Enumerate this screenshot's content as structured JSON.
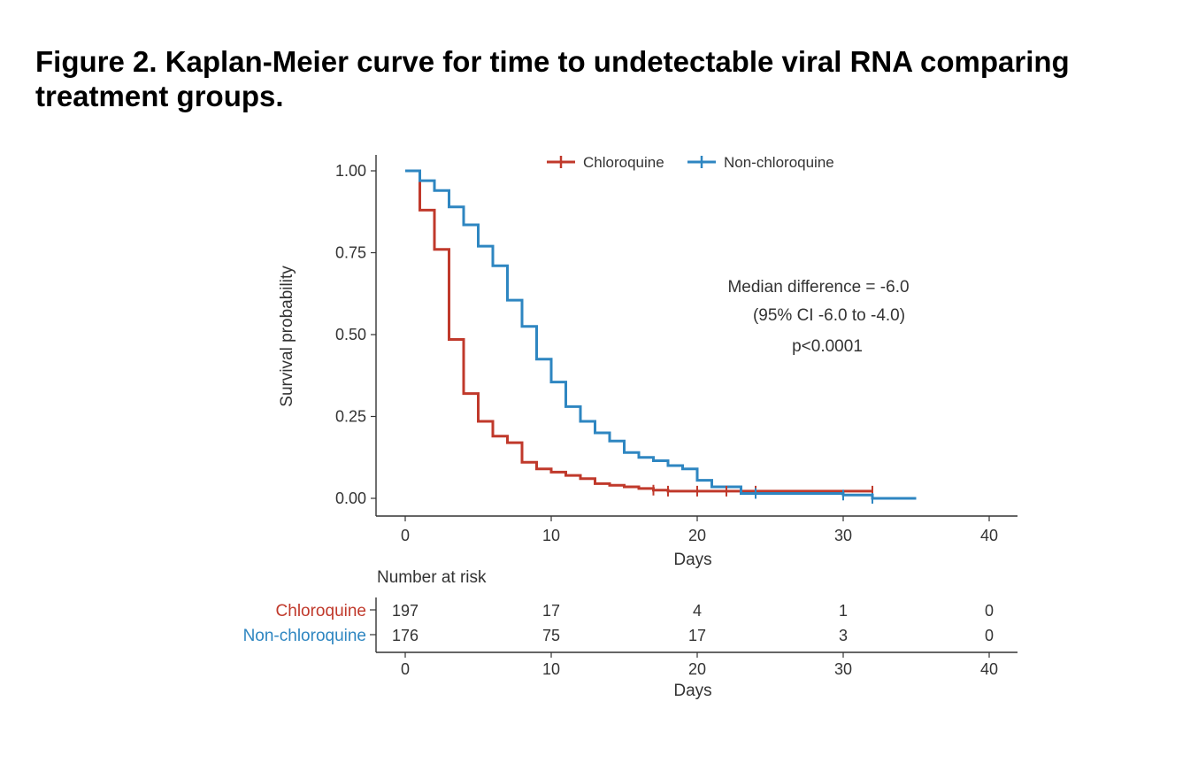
{
  "figure_title": "Figure 2. Kaplan-Meier curve for time to undetectable viral RNA comparing treatment groups.",
  "chart_data": {
    "type": "line",
    "step": true,
    "xlabel": "Days",
    "ylabel": "Survival probability",
    "xlim": [
      -2,
      42
    ],
    "ylim": [
      -0.05,
      1.04
    ],
    "xticks": [
      0,
      10,
      20,
      30,
      40
    ],
    "yticks": [
      0.0,
      0.25,
      0.5,
      0.75,
      1.0
    ],
    "xtick_labels": [
      "0",
      "10",
      "20",
      "30",
      "40"
    ],
    "ytick_labels": [
      "0.00",
      "0.25",
      "0.50",
      "0.75",
      "1.00"
    ],
    "legend_position": "top",
    "series": [
      {
        "name": "Chloroquine",
        "color": "#C0392B",
        "x": [
          0,
          1,
          2,
          3,
          4,
          5,
          6,
          7,
          8,
          9,
          10,
          11,
          12,
          13,
          14,
          15,
          16,
          17,
          18,
          24,
          32
        ],
        "y": [
          1.0,
          0.88,
          0.76,
          0.485,
          0.32,
          0.235,
          0.19,
          0.17,
          0.11,
          0.09,
          0.08,
          0.07,
          0.06,
          0.045,
          0.04,
          0.035,
          0.03,
          0.025,
          0.022,
          0.022,
          0.022
        ],
        "censor_x": [
          17,
          18,
          20,
          22,
          24,
          32
        ]
      },
      {
        "name": "Non-chloroquine",
        "color": "#2E86C1",
        "x": [
          0,
          1,
          2,
          3,
          4,
          5,
          6,
          7,
          8,
          9,
          10,
          11,
          12,
          13,
          14,
          15,
          16,
          17,
          18,
          19,
          20,
          21,
          22,
          23,
          24,
          30,
          32,
          33,
          35
        ],
        "y": [
          1.0,
          0.97,
          0.94,
          0.89,
          0.835,
          0.77,
          0.71,
          0.605,
          0.525,
          0.425,
          0.355,
          0.28,
          0.235,
          0.2,
          0.175,
          0.14,
          0.125,
          0.115,
          0.1,
          0.09,
          0.055,
          0.035,
          0.035,
          0.015,
          0.015,
          0.01,
          0.0,
          0.0,
          0.0
        ],
        "censor_x": [
          24,
          30,
          32
        ]
      }
    ],
    "annotations": [
      "Median difference = -6.0",
      "(95% CI -6.0 to -4.0)",
      "p<0.0001"
    ],
    "risk_table": {
      "title": "Number at risk",
      "xlabel": "Days",
      "times": [
        0,
        10,
        20,
        30,
        40
      ],
      "time_labels": [
        "0",
        "10",
        "20",
        "30",
        "40"
      ],
      "rows": [
        {
          "name": "Chloroquine",
          "color": "#C0392B",
          "counts": [
            "197",
            "17",
            "4",
            "1",
            "0"
          ]
        },
        {
          "name": "Non-chloroquine",
          "color": "#2E86C1",
          "counts": [
            "176",
            "75",
            "17",
            "3",
            "0"
          ]
        }
      ]
    }
  }
}
